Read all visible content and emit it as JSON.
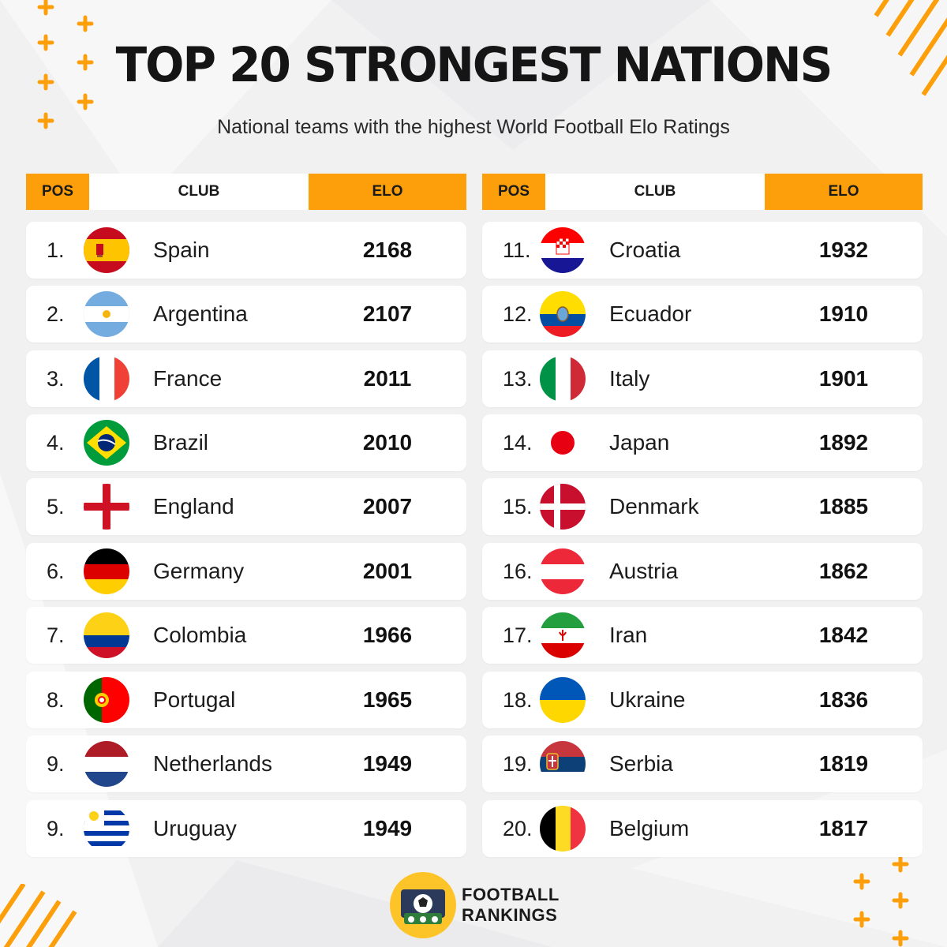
{
  "title": "TOP 20 STRONGEST NATIONS",
  "subtitle": "National teams with the highest World Football Elo Ratings",
  "headers": {
    "pos": "POS",
    "club": "CLUB",
    "elo": "ELO"
  },
  "colors": {
    "accent": "#fd9f0b",
    "background": "#f1f1f2",
    "row": "#ffffff",
    "text": "#1a1a1a"
  },
  "left_table": [
    {
      "pos": "1.",
      "country": "Spain",
      "elo": "2168",
      "flag": "spain-flag-icon"
    },
    {
      "pos": "2.",
      "country": "Argentina",
      "elo": "2107",
      "flag": "argentina-flag-icon"
    },
    {
      "pos": "3.",
      "country": "France",
      "elo": "2011",
      "flag": "france-flag-icon"
    },
    {
      "pos": "4.",
      "country": "Brazil",
      "elo": "2010",
      "flag": "brazil-flag-icon"
    },
    {
      "pos": "5.",
      "country": "England",
      "elo": "2007",
      "flag": "england-flag-icon"
    },
    {
      "pos": "6.",
      "country": "Germany",
      "elo": "2001",
      "flag": "germany-flag-icon"
    },
    {
      "pos": "7.",
      "country": "Colombia",
      "elo": "1966",
      "flag": "colombia-flag-icon"
    },
    {
      "pos": "8.",
      "country": "Portugal",
      "elo": "1965",
      "flag": "portugal-flag-icon"
    },
    {
      "pos": "9.",
      "country": "Netherlands",
      "elo": "1949",
      "flag": "netherlands-flag-icon"
    },
    {
      "pos": "9.",
      "country": "Uruguay",
      "elo": "1949",
      "flag": "uruguay-flag-icon"
    }
  ],
  "right_table": [
    {
      "pos": "11.",
      "country": "Croatia",
      "elo": "1932",
      "flag": "croatia-flag-icon"
    },
    {
      "pos": "12.",
      "country": "Ecuador",
      "elo": "1910",
      "flag": "ecuador-flag-icon"
    },
    {
      "pos": "13.",
      "country": "Italy",
      "elo": "1901",
      "flag": "italy-flag-icon"
    },
    {
      "pos": "14.",
      "country": "Japan",
      "elo": "1892",
      "flag": "japan-flag-icon"
    },
    {
      "pos": "15.",
      "country": "Denmark",
      "elo": "1885",
      "flag": "denmark-flag-icon"
    },
    {
      "pos": "16.",
      "country": "Austria",
      "elo": "1862",
      "flag": "austria-flag-icon"
    },
    {
      "pos": "17.",
      "country": "Iran",
      "elo": "1842",
      "flag": "iran-flag-icon"
    },
    {
      "pos": "18.",
      "country": "Ukraine",
      "elo": "1836",
      "flag": "ukraine-flag-icon"
    },
    {
      "pos": "19.",
      "country": "Serbia",
      "elo": "1819",
      "flag": "serbia-flag-icon"
    },
    {
      "pos": "20.",
      "country": "Belgium",
      "elo": "1817",
      "flag": "belgium-flag-icon"
    }
  ],
  "brand": {
    "line1": "FOOTBALL",
    "line2": "RANKINGS"
  }
}
